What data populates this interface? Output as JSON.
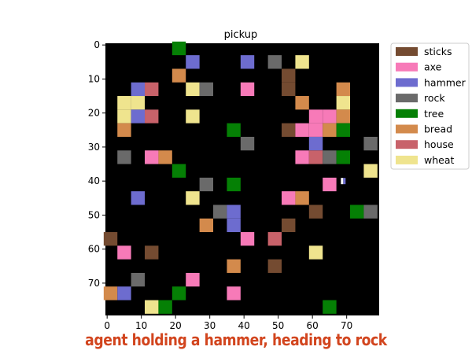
{
  "title": "pickup",
  "caption": "agent holding a hammer, heading to rock",
  "grid_size": 80,
  "cell_size": 4,
  "x_ticks": [
    "0",
    "10",
    "20",
    "30",
    "40",
    "50",
    "60",
    "70"
  ],
  "y_ticks": [
    "0",
    "10",
    "20",
    "30",
    "40",
    "50",
    "60",
    "70"
  ],
  "background_color": "#000000",
  "legend": [
    {
      "name": "sticks",
      "color": "#744b31"
    },
    {
      "name": "axe",
      "color": "#f77ab8"
    },
    {
      "name": "hammer",
      "color": "#6d6ccf"
    },
    {
      "name": "rock",
      "color": "#6a6a6a"
    },
    {
      "name": "tree",
      "color": "#058005"
    },
    {
      "name": "bread",
      "color": "#d38a4c"
    },
    {
      "name": "house",
      "color": "#c8626a"
    },
    {
      "name": "wheat",
      "color": "#efe48e"
    }
  ],
  "agent": {
    "holding": "hammer",
    "heading_to": "rock",
    "col": 69,
    "row": 40
  },
  "items": [
    {
      "type": "tree",
      "col": 21,
      "row": 1
    },
    {
      "type": "hammer",
      "col": 25,
      "row": 5
    },
    {
      "type": "hammer",
      "col": 41,
      "row": 5
    },
    {
      "type": "rock",
      "col": 49,
      "row": 5
    },
    {
      "type": "wheat",
      "col": 57,
      "row": 5
    },
    {
      "type": "bread",
      "col": 21,
      "row": 9
    },
    {
      "type": "sticks",
      "col": 53,
      "row": 9
    },
    {
      "type": "hammer",
      "col": 9,
      "row": 13
    },
    {
      "type": "house",
      "col": 13,
      "row": 13
    },
    {
      "type": "wheat",
      "col": 25,
      "row": 13
    },
    {
      "type": "rock",
      "col": 29,
      "row": 13
    },
    {
      "type": "axe",
      "col": 41,
      "row": 13
    },
    {
      "type": "sticks",
      "col": 53,
      "row": 13
    },
    {
      "type": "bread",
      "col": 69,
      "row": 13
    },
    {
      "type": "wheat",
      "col": 5,
      "row": 17
    },
    {
      "type": "wheat",
      "col": 9,
      "row": 17
    },
    {
      "type": "bread",
      "col": 57,
      "row": 17
    },
    {
      "type": "wheat",
      "col": 69,
      "row": 17
    },
    {
      "type": "wheat",
      "col": 5,
      "row": 21
    },
    {
      "type": "hammer",
      "col": 9,
      "row": 21
    },
    {
      "type": "house",
      "col": 13,
      "row": 21
    },
    {
      "type": "wheat",
      "col": 25,
      "row": 21
    },
    {
      "type": "axe",
      "col": 61,
      "row": 21
    },
    {
      "type": "axe",
      "col": 65,
      "row": 21
    },
    {
      "type": "bread",
      "col": 69,
      "row": 21
    },
    {
      "type": "bread",
      "col": 5,
      "row": 25
    },
    {
      "type": "tree",
      "col": 37,
      "row": 25
    },
    {
      "type": "sticks",
      "col": 53,
      "row": 25
    },
    {
      "type": "axe",
      "col": 57,
      "row": 25
    },
    {
      "type": "axe",
      "col": 61,
      "row": 25
    },
    {
      "type": "bread",
      "col": 65,
      "row": 25
    },
    {
      "type": "tree",
      "col": 69,
      "row": 25
    },
    {
      "type": "rock",
      "col": 41,
      "row": 29
    },
    {
      "type": "hammer",
      "col": 61,
      "row": 29
    },
    {
      "type": "rock",
      "col": 77,
      "row": 29
    },
    {
      "type": "rock",
      "col": 5,
      "row": 33
    },
    {
      "type": "axe",
      "col": 13,
      "row": 33
    },
    {
      "type": "bread",
      "col": 17,
      "row": 33
    },
    {
      "type": "axe",
      "col": 57,
      "row": 33
    },
    {
      "type": "house",
      "col": 61,
      "row": 33
    },
    {
      "type": "rock",
      "col": 65,
      "row": 33
    },
    {
      "type": "tree",
      "col": 69,
      "row": 33
    },
    {
      "type": "tree",
      "col": 21,
      "row": 37
    },
    {
      "type": "wheat",
      "col": 77,
      "row": 37
    },
    {
      "type": "rock",
      "col": 29,
      "row": 41
    },
    {
      "type": "tree",
      "col": 37,
      "row": 41
    },
    {
      "type": "axe",
      "col": 65,
      "row": 41
    },
    {
      "type": "hammer",
      "col": 9,
      "row": 45
    },
    {
      "type": "wheat",
      "col": 25,
      "row": 45
    },
    {
      "type": "axe",
      "col": 53,
      "row": 45
    },
    {
      "type": "bread",
      "col": 57,
      "row": 45
    },
    {
      "type": "rock",
      "col": 33,
      "row": 49
    },
    {
      "type": "hammer",
      "col": 37,
      "row": 49
    },
    {
      "type": "sticks",
      "col": 61,
      "row": 49
    },
    {
      "type": "tree",
      "col": 73,
      "row": 49
    },
    {
      "type": "rock",
      "col": 77,
      "row": 49
    },
    {
      "type": "bread",
      "col": 29,
      "row": 53
    },
    {
      "type": "hammer",
      "col": 37,
      "row": 53
    },
    {
      "type": "sticks",
      "col": 53,
      "row": 53
    },
    {
      "type": "sticks",
      "col": 1,
      "row": 57
    },
    {
      "type": "axe",
      "col": 41,
      "row": 57
    },
    {
      "type": "house",
      "col": 49,
      "row": 57
    },
    {
      "type": "axe",
      "col": 5,
      "row": 61
    },
    {
      "type": "sticks",
      "col": 13,
      "row": 61
    },
    {
      "type": "wheat",
      "col": 61,
      "row": 61
    },
    {
      "type": "bread",
      "col": 37,
      "row": 65
    },
    {
      "type": "sticks",
      "col": 49,
      "row": 65
    },
    {
      "type": "rock",
      "col": 9,
      "row": 69
    },
    {
      "type": "axe",
      "col": 25,
      "row": 69
    },
    {
      "type": "bread",
      "col": 1,
      "row": 73
    },
    {
      "type": "hammer",
      "col": 5,
      "row": 73
    },
    {
      "type": "tree",
      "col": 21,
      "row": 73
    },
    {
      "type": "axe",
      "col": 37,
      "row": 73
    },
    {
      "type": "wheat",
      "col": 13,
      "row": 77
    },
    {
      "type": "tree",
      "col": 17,
      "row": 77
    },
    {
      "type": "tree",
      "col": 65,
      "row": 77
    }
  ]
}
